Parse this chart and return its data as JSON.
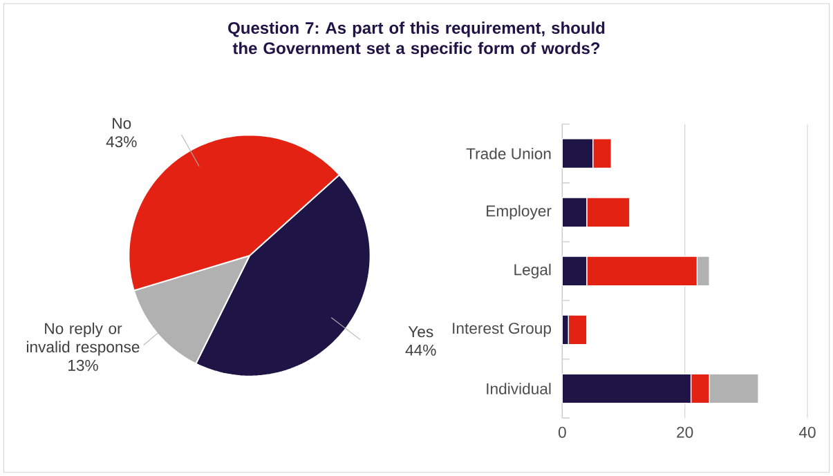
{
  "chart_data": [
    {
      "type": "pie",
      "title": "Question 7: As part of this requirement, should the Government set a specific form of words?",
      "categories": [
        "Yes",
        "No reply or invalid response",
        "No"
      ],
      "values": [
        44,
        13,
        43
      ],
      "colors": [
        "#1f1446",
        "#b1b1b1",
        "#e32213"
      ],
      "value_labels": [
        "44%",
        "13%",
        "43%"
      ]
    },
    {
      "type": "bar",
      "orientation": "horizontal",
      "stacked": true,
      "categories": [
        "Trade Union",
        "Employer",
        "Legal",
        "Interest Group",
        "Individual"
      ],
      "series": [
        {
          "color": "#1f1446",
          "values": [
            5,
            4,
            4,
            1,
            21
          ]
        },
        {
          "color": "#e32213",
          "values": [
            3,
            7,
            18,
            3,
            3
          ]
        },
        {
          "color": "#b1b1b1",
          "values": [
            null,
            null,
            2,
            null,
            8
          ]
        }
      ],
      "xlim": [
        0,
        40
      ],
      "xticks": [
        0,
        20,
        40
      ],
      "grid": "x"
    }
  ]
}
